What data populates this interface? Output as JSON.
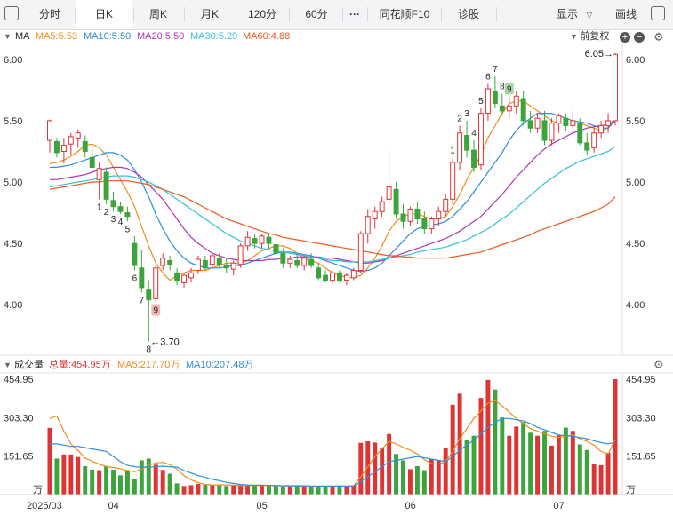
{
  "toolbar": {
    "tabs": [
      "分时",
      "日K",
      "周K",
      "月K",
      "120分",
      "60分",
      "···",
      "同花顺F10",
      "诊股"
    ],
    "active_index": 1,
    "display_label": "显示",
    "draw_label": "画线"
  },
  "main_legend": {
    "ma_label": "MA",
    "items": [
      {
        "text": "MA5:5.53",
        "color": "#f08c1c"
      },
      {
        "text": "MA10:5.50",
        "color": "#2f8fe0"
      },
      {
        "text": "MA20:5.50",
        "color": "#b235b8"
      },
      {
        "text": "MA30:5.29",
        "color": "#32c3d6"
      },
      {
        "text": "MA60:4.88",
        "color": "#f05a1e"
      }
    ],
    "adjust_label": "前复权"
  },
  "volume_legend": {
    "title": "成交量",
    "items": [
      {
        "text": "总量:454.95万",
        "color": "#e03434"
      },
      {
        "text": "MA5:217.70万",
        "color": "#f08c1c"
      },
      {
        "text": "MA10:207.48万",
        "color": "#2f8fe0"
      }
    ]
  },
  "chart_data": {
    "type": "candlestick",
    "price_axis": {
      "ticks": [
        "6.00",
        "5.50",
        "5.00",
        "4.50",
        "4.00"
      ],
      "values": [
        6.0,
        5.5,
        5.0,
        4.5,
        4.0
      ],
      "range": [
        3.64,
        6.1
      ]
    },
    "volume_axis": {
      "ticks": [
        "454.95",
        "303.30",
        "151.65"
      ],
      "values": [
        454.95,
        303.3,
        151.65
      ],
      "unit": "万",
      "range": [
        0,
        454.95
      ]
    },
    "x_labels": [
      {
        "text": "2025/03",
        "index": 0
      },
      {
        "text": "04",
        "index": 9
      },
      {
        "text": "05",
        "index": 30
      },
      {
        "text": "06",
        "index": 51
      },
      {
        "text": "07",
        "index": 72
      }
    ],
    "high_annotation": "6.05→",
    "low_annotation": "←3.70",
    "colors": {
      "up": "#e03434",
      "down": "#3ba53c",
      "up_fill": "#ffffff"
    },
    "candles": [
      {
        "o": 5.34,
        "h": 5.51,
        "l": 5.24,
        "c": 5.5
      },
      {
        "o": 5.33,
        "h": 5.36,
        "l": 5.2,
        "c": 5.24
      },
      {
        "o": 5.25,
        "h": 5.36,
        "l": 5.15,
        "c": 5.3
      },
      {
        "o": 5.31,
        "h": 5.4,
        "l": 5.22,
        "c": 5.37
      },
      {
        "o": 5.36,
        "h": 5.43,
        "l": 5.28,
        "c": 5.4
      },
      {
        "o": 5.33,
        "h": 5.38,
        "l": 5.2,
        "c": 5.25
      },
      {
        "o": 5.2,
        "h": 5.28,
        "l": 5.08,
        "c": 5.12
      },
      {
        "o": 5.02,
        "h": 5.16,
        "l": 4.86,
        "c": 5.11
      },
      {
        "o": 5.08,
        "h": 5.12,
        "l": 4.82,
        "c": 4.86
      },
      {
        "o": 4.85,
        "h": 4.92,
        "l": 4.76,
        "c": 4.8
      },
      {
        "o": 4.8,
        "h": 4.84,
        "l": 4.74,
        "c": 4.76
      },
      {
        "o": 4.75,
        "h": 4.8,
        "l": 4.68,
        "c": 4.72
      },
      {
        "o": 4.5,
        "h": 4.56,
        "l": 4.28,
        "c": 4.32
      },
      {
        "o": 4.3,
        "h": 4.45,
        "l": 4.1,
        "c": 4.14
      },
      {
        "o": 4.12,
        "h": 4.2,
        "l": 3.7,
        "c": 4.04
      },
      {
        "o": 4.05,
        "h": 4.33,
        "l": 4.02,
        "c": 4.3
      },
      {
        "o": 4.32,
        "h": 4.42,
        "l": 4.28,
        "c": 4.38
      },
      {
        "o": 4.36,
        "h": 4.4,
        "l": 4.28,
        "c": 4.33
      },
      {
        "o": 4.26,
        "h": 4.3,
        "l": 4.16,
        "c": 4.2
      },
      {
        "o": 4.18,
        "h": 4.26,
        "l": 4.14,
        "c": 4.24
      },
      {
        "o": 4.22,
        "h": 4.3,
        "l": 4.18,
        "c": 4.26
      },
      {
        "o": 4.28,
        "h": 4.4,
        "l": 4.25,
        "c": 4.37
      },
      {
        "o": 4.36,
        "h": 4.4,
        "l": 4.28,
        "c": 4.3
      },
      {
        "o": 4.33,
        "h": 4.42,
        "l": 4.3,
        "c": 4.4
      },
      {
        "o": 4.38,
        "h": 4.42,
        "l": 4.3,
        "c": 4.33
      },
      {
        "o": 4.32,
        "h": 4.38,
        "l": 4.26,
        "c": 4.3
      },
      {
        "o": 4.29,
        "h": 4.36,
        "l": 4.24,
        "c": 4.34
      },
      {
        "o": 4.33,
        "h": 4.5,
        "l": 4.3,
        "c": 4.48
      },
      {
        "o": 4.48,
        "h": 4.6,
        "l": 4.44,
        "c": 4.55
      },
      {
        "o": 4.54,
        "h": 4.58,
        "l": 4.46,
        "c": 4.5
      },
      {
        "o": 4.5,
        "h": 4.58,
        "l": 4.46,
        "c": 4.56
      },
      {
        "o": 4.55,
        "h": 4.58,
        "l": 4.46,
        "c": 4.5
      },
      {
        "o": 4.49,
        "h": 4.55,
        "l": 4.4,
        "c": 4.42
      },
      {
        "o": 4.42,
        "h": 4.46,
        "l": 4.3,
        "c": 4.34
      },
      {
        "o": 4.34,
        "h": 4.4,
        "l": 4.3,
        "c": 4.37
      },
      {
        "o": 4.36,
        "h": 4.42,
        "l": 4.3,
        "c": 4.32
      },
      {
        "o": 4.32,
        "h": 4.4,
        "l": 4.28,
        "c": 4.38
      },
      {
        "o": 4.37,
        "h": 4.42,
        "l": 4.3,
        "c": 4.32
      },
      {
        "o": 4.3,
        "h": 4.34,
        "l": 4.2,
        "c": 4.22
      },
      {
        "o": 4.24,
        "h": 4.28,
        "l": 4.18,
        "c": 4.2
      },
      {
        "o": 4.2,
        "h": 4.28,
        "l": 4.18,
        "c": 4.26
      },
      {
        "o": 4.26,
        "h": 4.28,
        "l": 4.18,
        "c": 4.2
      },
      {
        "o": 4.2,
        "h": 4.26,
        "l": 4.16,
        "c": 4.24
      },
      {
        "o": 4.22,
        "h": 4.3,
        "l": 4.2,
        "c": 4.28
      },
      {
        "o": 4.28,
        "h": 4.6,
        "l": 4.26,
        "c": 4.58
      },
      {
        "o": 4.58,
        "h": 4.78,
        "l": 4.5,
        "c": 4.72
      },
      {
        "o": 4.7,
        "h": 4.8,
        "l": 4.62,
        "c": 4.76
      },
      {
        "o": 4.76,
        "h": 4.88,
        "l": 4.72,
        "c": 4.84
      },
      {
        "o": 4.86,
        "h": 5.25,
        "l": 4.82,
        "c": 4.96
      },
      {
        "o": 4.94,
        "h": 5.0,
        "l": 4.7,
        "c": 4.74
      },
      {
        "o": 4.74,
        "h": 4.82,
        "l": 4.62,
        "c": 4.68
      },
      {
        "o": 4.68,
        "h": 4.8,
        "l": 4.64,
        "c": 4.78
      },
      {
        "o": 4.78,
        "h": 4.84,
        "l": 4.66,
        "c": 4.7
      },
      {
        "o": 4.7,
        "h": 4.76,
        "l": 4.58,
        "c": 4.62
      },
      {
        "o": 4.62,
        "h": 4.72,
        "l": 4.58,
        "c": 4.7
      },
      {
        "o": 4.7,
        "h": 4.8,
        "l": 4.64,
        "c": 4.76
      },
      {
        "o": 4.76,
        "h": 4.9,
        "l": 4.72,
        "c": 4.86
      },
      {
        "o": 4.86,
        "h": 5.2,
        "l": 4.82,
        "c": 5.16
      },
      {
        "o": 5.16,
        "h": 5.46,
        "l": 5.1,
        "c": 5.4
      },
      {
        "o": 5.38,
        "h": 5.5,
        "l": 5.2,
        "c": 5.26
      },
      {
        "o": 5.26,
        "h": 5.34,
        "l": 5.08,
        "c": 5.12
      },
      {
        "o": 5.14,
        "h": 5.6,
        "l": 5.1,
        "c": 5.56
      },
      {
        "o": 5.56,
        "h": 5.8,
        "l": 5.5,
        "c": 5.76
      },
      {
        "o": 5.74,
        "h": 5.86,
        "l": 5.6,
        "c": 5.64
      },
      {
        "o": 5.62,
        "h": 5.72,
        "l": 5.54,
        "c": 5.58
      },
      {
        "o": 5.58,
        "h": 5.7,
        "l": 5.52,
        "c": 5.62
      },
      {
        "o": 5.62,
        "h": 5.74,
        "l": 5.56,
        "c": 5.7
      },
      {
        "o": 5.68,
        "h": 5.74,
        "l": 5.46,
        "c": 5.5
      },
      {
        "o": 5.5,
        "h": 5.58,
        "l": 5.4,
        "c": 5.44
      },
      {
        "o": 5.44,
        "h": 5.56,
        "l": 5.4,
        "c": 5.52
      },
      {
        "o": 5.5,
        "h": 5.58,
        "l": 5.3,
        "c": 5.34
      },
      {
        "o": 5.34,
        "h": 5.52,
        "l": 5.3,
        "c": 5.48
      },
      {
        "o": 5.48,
        "h": 5.56,
        "l": 5.4,
        "c": 5.54
      },
      {
        "o": 5.52,
        "h": 5.56,
        "l": 5.42,
        "c": 5.46
      },
      {
        "o": 5.46,
        "h": 5.58,
        "l": 5.4,
        "c": 5.5
      },
      {
        "o": 5.48,
        "h": 5.52,
        "l": 5.3,
        "c": 5.32
      },
      {
        "o": 5.32,
        "h": 5.4,
        "l": 5.22,
        "c": 5.26
      },
      {
        "o": 5.28,
        "h": 5.44,
        "l": 5.24,
        "c": 5.4
      },
      {
        "o": 5.4,
        "h": 5.5,
        "l": 5.36,
        "c": 5.46
      },
      {
        "o": 5.46,
        "h": 5.56,
        "l": 5.4,
        "c": 5.5
      },
      {
        "o": 5.5,
        "h": 6.05,
        "l": 5.46,
        "c": 6.04
      }
    ],
    "volumes": [
      263,
      142,
      158,
      158,
      148,
      112,
      98,
      96,
      113,
      98,
      76,
      94,
      63,
      135,
      142,
      118,
      97,
      82,
      44,
      34,
      37,
      42,
      39,
      37,
      38,
      34,
      36,
      35,
      35,
      37,
      38,
      36,
      34,
      31,
      33,
      36,
      32,
      35,
      33,
      30,
      34,
      36,
      32,
      36,
      204,
      210,
      205,
      186,
      239,
      160,
      135,
      100,
      112,
      96,
      140,
      136,
      182,
      354,
      398,
      214,
      232,
      381,
      452,
      414,
      304,
      232,
      268,
      286,
      244,
      232,
      251,
      193,
      236,
      264,
      251,
      198,
      176,
      121,
      116,
      165,
      454.95
    ],
    "ma_lines": {
      "MA5": [
        5.15,
        5.16,
        5.18,
        5.21,
        5.25,
        5.3,
        5.31,
        5.28,
        5.22,
        5.12,
        5.02,
        4.92,
        4.8,
        4.64,
        4.48,
        4.34,
        4.26,
        4.2,
        4.24,
        4.26,
        4.28,
        4.28,
        4.28,
        4.3,
        4.32,
        4.34,
        4.34,
        4.34,
        4.36,
        4.4,
        4.44,
        4.46,
        4.48,
        4.48,
        4.46,
        4.42,
        4.38,
        4.36,
        4.34,
        4.3,
        4.26,
        4.24,
        4.22,
        4.22,
        4.24,
        4.3,
        4.38,
        4.48,
        4.6,
        4.68,
        4.72,
        4.74,
        4.74,
        4.72,
        4.7,
        4.7,
        4.72,
        4.8,
        4.9,
        5.02,
        5.12,
        5.22,
        5.36,
        5.46,
        5.56,
        5.64,
        5.66,
        5.66,
        5.62,
        5.58,
        5.54,
        5.5,
        5.48,
        5.48,
        5.48,
        5.48,
        5.46,
        5.44,
        5.42,
        5.44,
        5.53
      ],
      "MA10": [
        5.12,
        5.12,
        5.13,
        5.14,
        5.16,
        5.18,
        5.2,
        5.22,
        5.24,
        5.24,
        5.22,
        5.18,
        5.1,
        5.0,
        4.88,
        4.74,
        4.62,
        4.52,
        4.44,
        4.38,
        4.34,
        4.32,
        4.3,
        4.3,
        4.3,
        4.31,
        4.32,
        4.32,
        4.34,
        4.36,
        4.38,
        4.4,
        4.42,
        4.43,
        4.43,
        4.42,
        4.41,
        4.4,
        4.38,
        4.36,
        4.34,
        4.32,
        4.3,
        4.28,
        4.27,
        4.28,
        4.3,
        4.34,
        4.4,
        4.46,
        4.52,
        4.58,
        4.62,
        4.64,
        4.65,
        4.66,
        4.68,
        4.72,
        4.78,
        4.84,
        4.92,
        5.0,
        5.08,
        5.16,
        5.24,
        5.34,
        5.42,
        5.48,
        5.52,
        5.56,
        5.56,
        5.56,
        5.54,
        5.52,
        5.5,
        5.49,
        5.48,
        5.46,
        5.44,
        5.44,
        5.5
      ],
      "MA20": [
        5.02,
        5.02,
        5.03,
        5.04,
        5.05,
        5.06,
        5.08,
        5.1,
        5.11,
        5.12,
        5.12,
        5.11,
        5.08,
        5.04,
        4.98,
        4.92,
        4.86,
        4.78,
        4.7,
        4.62,
        4.55,
        4.5,
        4.46,
        4.42,
        4.4,
        4.38,
        4.37,
        4.36,
        4.36,
        4.36,
        4.36,
        4.37,
        4.37,
        4.38,
        4.38,
        4.39,
        4.39,
        4.39,
        4.39,
        4.38,
        4.38,
        4.37,
        4.36,
        4.35,
        4.34,
        4.34,
        4.35,
        4.36,
        4.38,
        4.4,
        4.42,
        4.44,
        4.46,
        4.48,
        4.5,
        4.52,
        4.54,
        4.57,
        4.6,
        4.64,
        4.68,
        4.72,
        4.78,
        4.84,
        4.9,
        4.97,
        5.04,
        5.1,
        5.16,
        5.22,
        5.27,
        5.31,
        5.34,
        5.37,
        5.4,
        5.42,
        5.44,
        5.45,
        5.46,
        5.47,
        5.5
      ],
      "MA30": [
        4.96,
        4.97,
        4.98,
        4.99,
        5.0,
        5.01,
        5.02,
        5.03,
        5.04,
        5.05,
        5.05,
        5.05,
        5.04,
        5.02,
        5.0,
        4.97,
        4.94,
        4.9,
        4.86,
        4.82,
        4.78,
        4.74,
        4.7,
        4.66,
        4.62,
        4.58,
        4.55,
        4.52,
        4.5,
        4.48,
        4.46,
        4.45,
        4.44,
        4.43,
        4.42,
        4.41,
        4.4,
        4.39,
        4.38,
        4.37,
        4.36,
        4.36,
        4.35,
        4.35,
        4.35,
        4.35,
        4.36,
        4.37,
        4.38,
        4.39,
        4.4,
        4.41,
        4.43,
        4.44,
        4.45,
        4.46,
        4.47,
        4.49,
        4.51,
        4.53,
        4.56,
        4.59,
        4.62,
        4.66,
        4.7,
        4.74,
        4.79,
        4.84,
        4.89,
        4.94,
        4.99,
        5.03,
        5.07,
        5.11,
        5.14,
        5.17,
        5.19,
        5.21,
        5.23,
        5.25,
        5.29
      ],
      "MA60": [
        4.94,
        4.95,
        4.96,
        4.97,
        4.98,
        4.99,
        5.0,
        5.0,
        5.01,
        5.01,
        5.01,
        5.01,
        5.0,
        4.99,
        4.98,
        4.96,
        4.94,
        4.92,
        4.9,
        4.88,
        4.85,
        4.82,
        4.79,
        4.76,
        4.73,
        4.7,
        4.68,
        4.66,
        4.64,
        4.62,
        4.6,
        4.58,
        4.57,
        4.55,
        4.54,
        4.53,
        4.52,
        4.51,
        4.5,
        4.49,
        4.48,
        4.47,
        4.46,
        4.45,
        4.44,
        4.43,
        4.42,
        4.41,
        4.4,
        4.4,
        4.39,
        4.39,
        4.38,
        4.38,
        4.38,
        4.38,
        4.38,
        4.39,
        4.4,
        4.41,
        4.42,
        4.43,
        4.45,
        4.47,
        4.49,
        4.51,
        4.53,
        4.55,
        4.57,
        4.6,
        4.62,
        4.64,
        4.66,
        4.68,
        4.7,
        4.72,
        4.74,
        4.76,
        4.79,
        4.82,
        4.88
      ]
    },
    "vol_ma_lines": {
      "MA5": [
        300,
        310,
        250,
        200,
        174,
        144,
        131,
        120,
        110,
        107,
        101,
        95,
        90,
        100,
        115,
        125,
        127,
        118,
        100,
        75,
        58,
        47,
        40,
        38,
        38,
        38,
        37,
        36,
        36,
        36,
        36,
        36,
        35,
        34,
        34,
        34,
        33,
        33,
        33,
        33,
        33,
        33,
        33,
        35,
        70,
        110,
        150,
        180,
        210,
        200,
        186,
        175,
        160,
        138,
        122,
        120,
        130,
        170,
        220,
        260,
        300,
        330,
        360,
        370,
        350,
        325,
        300,
        280,
        260,
        250,
        240,
        230,
        225,
        230,
        235,
        220,
        210,
        195,
        170,
        160,
        218
      ],
      "MA10": [
        200,
        200,
        195,
        190,
        190,
        185,
        180,
        175,
        170,
        150,
        130,
        115,
        110,
        108,
        108,
        110,
        112,
        110,
        108,
        95,
        85,
        75,
        68,
        60,
        55,
        48,
        44,
        40,
        38,
        37,
        37,
        36,
        36,
        35,
        35,
        35,
        35,
        34,
        34,
        34,
        34,
        34,
        34,
        34,
        50,
        70,
        90,
        110,
        130,
        135,
        140,
        145,
        150,
        145,
        140,
        135,
        130,
        150,
        175,
        195,
        215,
        240,
        265,
        285,
        300,
        300,
        295,
        290,
        280,
        265,
        255,
        245,
        235,
        232,
        230,
        225,
        220,
        212,
        205,
        200,
        207
      ]
    },
    "sequence_numbers": [
      {
        "i": 7,
        "t": "1"
      },
      {
        "i": 8,
        "t": "2"
      },
      {
        "i": 9,
        "t": "3"
      },
      {
        "i": 10,
        "t": "4"
      },
      {
        "i": 11,
        "t": "5"
      },
      {
        "i": 12,
        "t": "6"
      },
      {
        "i": 13,
        "t": "7"
      },
      {
        "i": 14,
        "t": "8"
      },
      {
        "i": 15,
        "t": "9",
        "boxed": true
      },
      {
        "i": 57,
        "t": "1"
      },
      {
        "i": 58,
        "t": "2"
      },
      {
        "i": 59,
        "t": "3"
      },
      {
        "i": 60,
        "t": "4"
      },
      {
        "i": 61,
        "t": "5"
      },
      {
        "i": 62,
        "t": "6"
      },
      {
        "i": 63,
        "t": "7"
      },
      {
        "i": 64,
        "t": "8"
      },
      {
        "i": 65,
        "t": "9",
        "boxed": true
      }
    ]
  }
}
